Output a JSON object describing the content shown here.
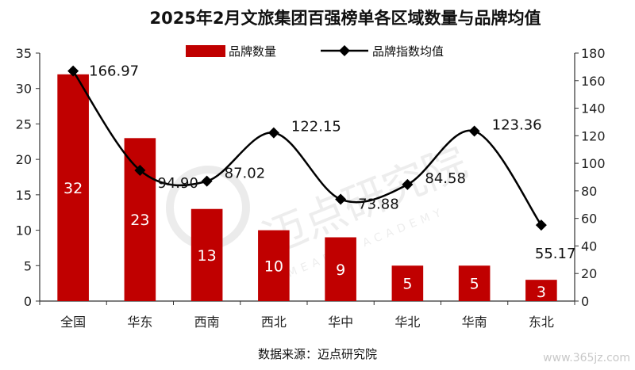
{
  "chart_data": {
    "type": "bar+line",
    "title": "2025年2月文旅集团百强榜单各区域数量与品牌均值",
    "categories": [
      "全国",
      "华东",
      "西南",
      "西北",
      "华中",
      "华北",
      "华南",
      "东北"
    ],
    "series": [
      {
        "name": "品牌数量",
        "type": "bar",
        "axis": "left",
        "color": "#c00000",
        "values": [
          32,
          23,
          13,
          10,
          9,
          5,
          5,
          3
        ]
      },
      {
        "name": "品牌指数均值",
        "type": "line",
        "axis": "right",
        "color": "#000000",
        "values": [
          166.97,
          94.9,
          87.02,
          122.15,
          73.88,
          84.58,
          123.36,
          55.17
        ],
        "labels": [
          "166.97",
          "94.90",
          "87.02",
          "122.15",
          "73.88",
          "84.58",
          "123.36",
          "55.17"
        ]
      }
    ],
    "y_left": {
      "min": 0,
      "max": 35,
      "step": 5
    },
    "y_right": {
      "min": 0,
      "max": 180,
      "step": 20
    },
    "legend_position": "top-center",
    "grid": false,
    "source": "数据来源：迈点研究院"
  },
  "watermark": {
    "logo_text": "迈点研究院",
    "sub_text": "MEADIN ACADEMY",
    "site": "www.365jz.com"
  }
}
